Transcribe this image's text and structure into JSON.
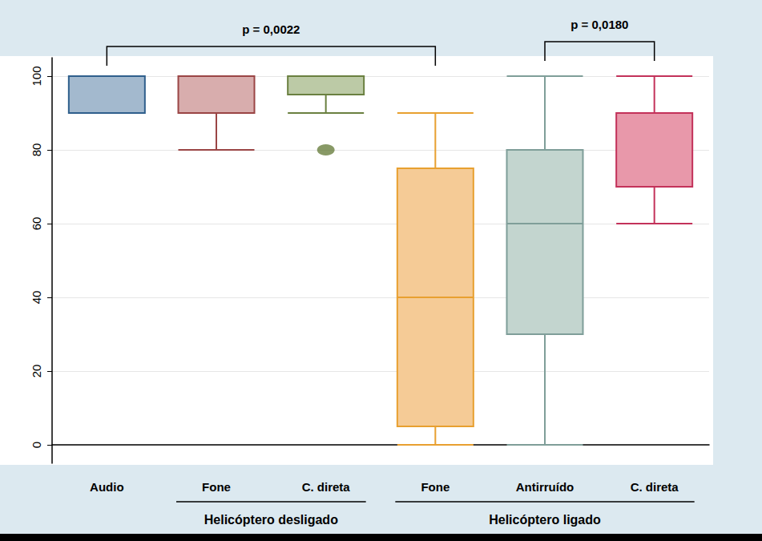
{
  "chart_data": {
    "type": "boxplot",
    "categories": [
      "Audio",
      "Fone",
      "C. direta",
      "Fone",
      "Antirruído",
      "C. direta"
    ],
    "values": [
      [
        90,
        90,
        100,
        100,
        100
      ],
      [
        80,
        90,
        100,
        100,
        100
      ],
      [
        90,
        95,
        100,
        100,
        100
      ],
      [
        0,
        5,
        40,
        75,
        90
      ],
      [
        0,
        30,
        60,
        80,
        100
      ],
      [
        60,
        70,
        90,
        90,
        100
      ]
    ],
    "outliers": [
      [
        2,
        80
      ]
    ],
    "colors": [
      "#a3b9ce",
      "#d8adad",
      "#bccaa6",
      "#f5cb96",
      "#c3d5cf",
      "#e898aa"
    ],
    "ylim": [
      -5,
      105
    ],
    "yticks": [
      0,
      20,
      40,
      60,
      80,
      100
    ],
    "grid": true,
    "groups": [
      {
        "label": "Helicóptero desligado",
        "from": 1,
        "to": 2
      },
      {
        "label": "Helicóptero ligado",
        "from": 3,
        "to": 5
      }
    ],
    "annotations": [
      {
        "text": "p = 0,0022",
        "from": 0,
        "to": 3
      },
      {
        "text": "p = 0,0180",
        "from": 4,
        "to": 5
      }
    ]
  }
}
